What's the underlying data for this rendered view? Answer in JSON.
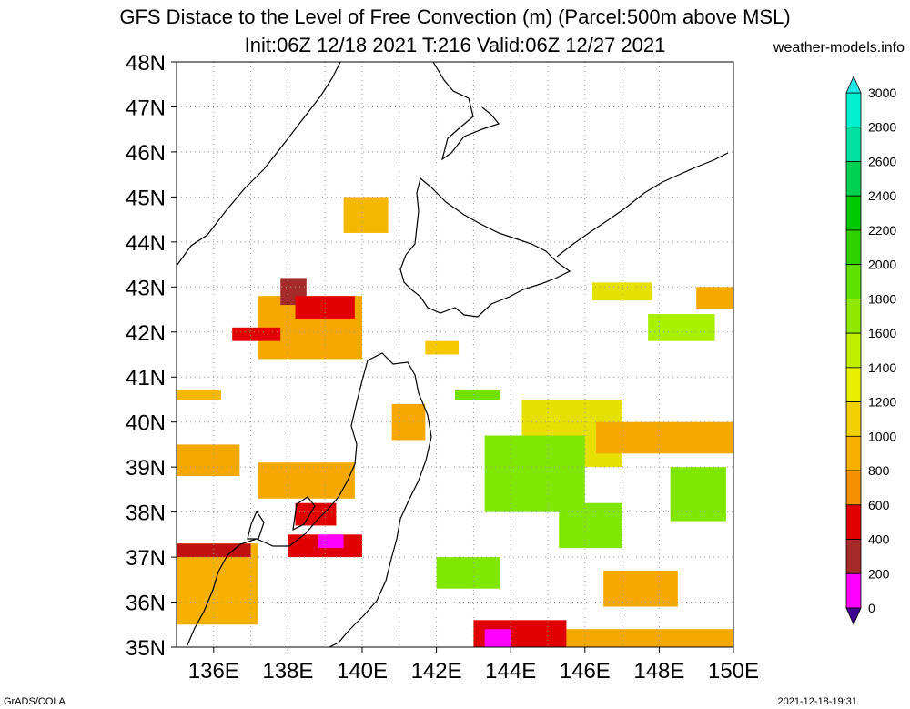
{
  "title": {
    "line1": "GFS Distace to the Level of Free Convection (m) (Parcel:500m above MSL)",
    "line2": "Init:06Z 12/18 2021 T:216 Valid:06Z 12/27 2021"
  },
  "credit": "weather-models.info",
  "footer": {
    "left": "GrADS/COLA",
    "right": "2021-12-18-19:31"
  },
  "map": {
    "lat_labels": [
      "48N",
      "47N",
      "46N",
      "45N",
      "44N",
      "43N",
      "42N",
      "41N",
      "40N",
      "39N",
      "38N",
      "37N",
      "36N",
      "35N"
    ],
    "lon_labels": [
      "136E",
      "138E",
      "140E",
      "142E",
      "144E",
      "146E",
      "148E",
      "150E"
    ],
    "lat_range": [
      35,
      48
    ],
    "lon_range": [
      135,
      150
    ],
    "grid": "dotted",
    "fields": [
      {
        "lon": [
          139.5,
          140.7
        ],
        "lat": [
          44.2,
          45.0
        ],
        "color": "#f5b800"
      },
      {
        "lon": [
          135.0,
          136.2
        ],
        "lat": [
          40.5,
          40.7
        ],
        "color": "#f5b800"
      },
      {
        "lon": [
          135.0,
          136.7
        ],
        "lat": [
          38.8,
          39.5
        ],
        "color": "#f5a800"
      },
      {
        "lon": [
          137.2,
          139.8
        ],
        "lat": [
          38.3,
          39.1
        ],
        "color": "#f5a800"
      },
      {
        "lon": [
          137.2,
          140.0
        ],
        "lat": [
          41.4,
          42.8
        ],
        "color": "#f5a800"
      },
      {
        "lon": [
          137.8,
          138.5
        ],
        "lat": [
          42.6,
          43.2
        ],
        "color": "#a52a2a"
      },
      {
        "lon": [
          138.2,
          139.8
        ],
        "lat": [
          42.3,
          42.8
        ],
        "color": "#e00000"
      },
      {
        "lon": [
          136.5,
          137.8
        ],
        "lat": [
          41.8,
          42.1
        ],
        "color": "#e00000"
      },
      {
        "lon": [
          140.8,
          141.7
        ],
        "lat": [
          39.6,
          40.4
        ],
        "color": "#f5a800"
      },
      {
        "lon": [
          141.7,
          142.6
        ],
        "lat": [
          41.5,
          41.8
        ],
        "color": "#f5c800"
      },
      {
        "lon": [
          142.5,
          143.7
        ],
        "lat": [
          40.5,
          40.7
        ],
        "color": "#70e000"
      },
      {
        "lon": [
          144.3,
          147.0
        ],
        "lat": [
          39.0,
          40.5
        ],
        "color": "#e6e000"
      },
      {
        "lon": [
          143.3,
          146.0
        ],
        "lat": [
          38.0,
          39.7
        ],
        "color": "#80e800"
      },
      {
        "lon": [
          146.3,
          150.0
        ],
        "lat": [
          39.3,
          40.0
        ],
        "color": "#f5a800"
      },
      {
        "lon": [
          148.3,
          149.8
        ],
        "lat": [
          37.8,
          39.0
        ],
        "color": "#80e800"
      },
      {
        "lon": [
          145.3,
          147.0
        ],
        "lat": [
          37.2,
          38.2
        ],
        "color": "#80e800"
      },
      {
        "lon": [
          142.0,
          143.7
        ],
        "lat": [
          36.3,
          37.0
        ],
        "color": "#80e800"
      },
      {
        "lon": [
          135.0,
          137.2
        ],
        "lat": [
          35.5,
          37.3
        ],
        "color": "#f5b000"
      },
      {
        "lon": [
          135.0,
          137.0
        ],
        "lat": [
          37.0,
          37.3
        ],
        "color": "#c01010"
      },
      {
        "lon": [
          138.0,
          140.0
        ],
        "lat": [
          37.0,
          37.5
        ],
        "color": "#e00000"
      },
      {
        "lon": [
          138.8,
          139.5
        ],
        "lat": [
          37.2,
          37.5
        ],
        "color": "#ff00ff"
      },
      {
        "lon": [
          138.2,
          139.3
        ],
        "lat": [
          37.7,
          38.2
        ],
        "color": "#e00000"
      },
      {
        "lon": [
          143.0,
          150.0
        ],
        "lat": [
          35.0,
          35.4
        ],
        "color": "#f5a800"
      },
      {
        "lon": [
          143.0,
          145.5
        ],
        "lat": [
          35.0,
          35.6
        ],
        "color": "#e00000"
      },
      {
        "lon": [
          143.3,
          144.0
        ],
        "lat": [
          35.0,
          35.4
        ],
        "color": "#ff00ff"
      },
      {
        "lon": [
          146.5,
          148.5
        ],
        "lat": [
          35.9,
          36.7
        ],
        "color": "#f5a800"
      },
      {
        "lon": [
          147.7,
          149.5
        ],
        "lat": [
          41.8,
          42.4
        ],
        "color": "#a8f000"
      },
      {
        "lon": [
          146.2,
          147.8
        ],
        "lat": [
          42.7,
          43.1
        ],
        "color": "#e6e000"
      },
      {
        "lon": [
          149.0,
          150.0
        ],
        "lat": [
          42.5,
          43.0
        ],
        "color": "#f5a800"
      }
    ]
  },
  "colorbar": {
    "labels": [
      "3000",
      "2800",
      "2600",
      "2400",
      "2200",
      "2000",
      "1800",
      "1600",
      "1400",
      "1200",
      "1000",
      "800",
      "600",
      "400",
      "200",
      "0"
    ],
    "colors": [
      "#00f0d0",
      "#00e0a0",
      "#00d050",
      "#00c800",
      "#30d000",
      "#60e000",
      "#90e800",
      "#c0f000",
      "#e8f000",
      "#f0d000",
      "#f5b000",
      "#f59000",
      "#e00000",
      "#a52a2a",
      "#ff00ff",
      "#400090"
    ],
    "top_arrow_color": "#20e8e8",
    "bottom_arrow_color": "#400090"
  }
}
